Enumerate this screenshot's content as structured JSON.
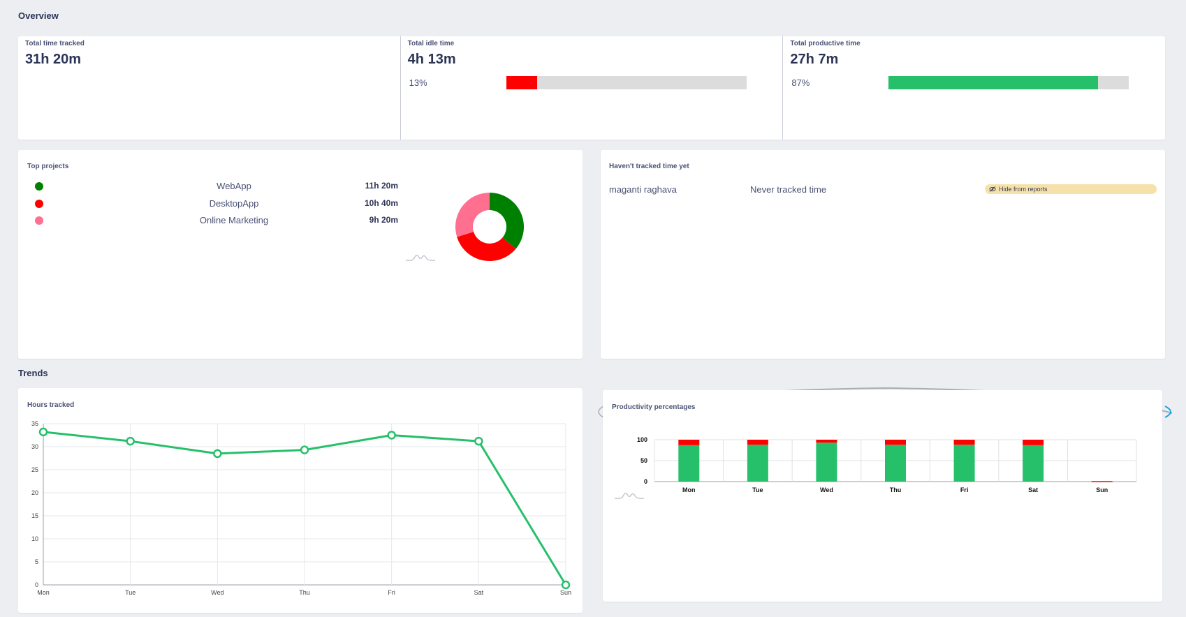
{
  "overview": {
    "title": "Overview",
    "total": {
      "label": "Total time tracked",
      "value": "31h 20m"
    },
    "idle": {
      "label": "Total idle time",
      "value": "4h 13m",
      "percent_text": "13%",
      "percent": 13,
      "color": "#ff0000"
    },
    "productive": {
      "label": "Total productive time",
      "value": "27h 7m",
      "percent_text": "87%",
      "percent": 87,
      "color": "#26c06a"
    }
  },
  "top_projects": {
    "title": "Top projects",
    "items": [
      {
        "name": "WebApp",
        "hours": "11h 20m",
        "minutes": 680,
        "color": "#008000"
      },
      {
        "name": "DesktopApp",
        "hours": "10h 40m",
        "minutes": 640,
        "color": "#ff0000"
      },
      {
        "name": "Online Marketing",
        "hours": "9h 20m",
        "minutes": 560,
        "color": "#ff6f8f"
      }
    ]
  },
  "untracked": {
    "title": "Haven't tracked time yet",
    "user": "maganti raghava",
    "status": "Never tracked time",
    "action": "Hide from reports",
    "action_icon": "eye-slash-icon"
  },
  "trends": {
    "title": "Trends"
  },
  "chart_data": [
    {
      "type": "line",
      "title": "Hours tracked",
      "categories": [
        "Mon",
        "Tue",
        "Wed",
        "Thu",
        "Fri",
        "Sat",
        "Sun"
      ],
      "values": [
        33.2,
        31.2,
        28.5,
        29.3,
        32.5,
        31.2,
        0
      ],
      "ylim": [
        0,
        35
      ],
      "yticks": [
        0,
        5,
        10,
        15,
        20,
        25,
        30,
        35
      ],
      "grid": true,
      "color": "#26c06a"
    },
    {
      "type": "bar",
      "stacked": true,
      "title": "Productivity percentages",
      "categories": [
        "Mon",
        "Tue",
        "Wed",
        "Thu",
        "Fri",
        "Sat",
        "Sun"
      ],
      "series": [
        {
          "values": [
            87,
            88,
            93,
            88,
            88,
            87,
            0
          ],
          "color": "#26c06a"
        },
        {
          "values": [
            13,
            12,
            7,
            12,
            12,
            13,
            0
          ],
          "color": "#ff0000"
        }
      ],
      "ylim": [
        0,
        100
      ],
      "yticks": [
        0,
        50,
        100
      ],
      "grid": true
    }
  ]
}
